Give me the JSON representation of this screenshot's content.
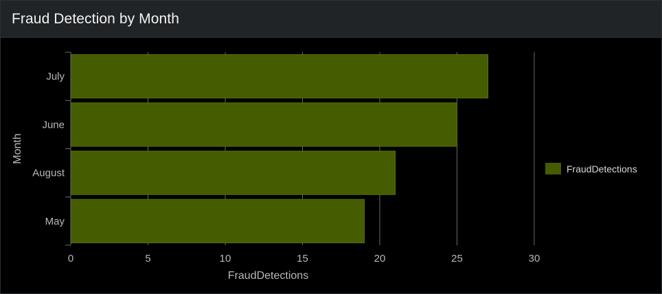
{
  "panel": {
    "title": "Fraud Detection by Month"
  },
  "chart_data": {
    "type": "bar",
    "orientation": "horizontal",
    "categories": [
      "July",
      "June",
      "August",
      "May"
    ],
    "series": [
      {
        "name": "FraudDetections",
        "values": [
          27,
          25,
          21,
          19
        ],
        "color": "#455c00"
      }
    ],
    "xlabel": "FraudDetections",
    "ylabel": "Month",
    "xlim": [
      0,
      30
    ],
    "xticks": [
      0,
      5,
      10,
      15,
      20,
      25,
      30
    ],
    "grid": true,
    "legend_position": "right"
  },
  "colors": {
    "background": "#000000",
    "header": "#212427",
    "bar": "#455c00",
    "grid": "#6a6a6a",
    "text": "#b8b8b8"
  }
}
